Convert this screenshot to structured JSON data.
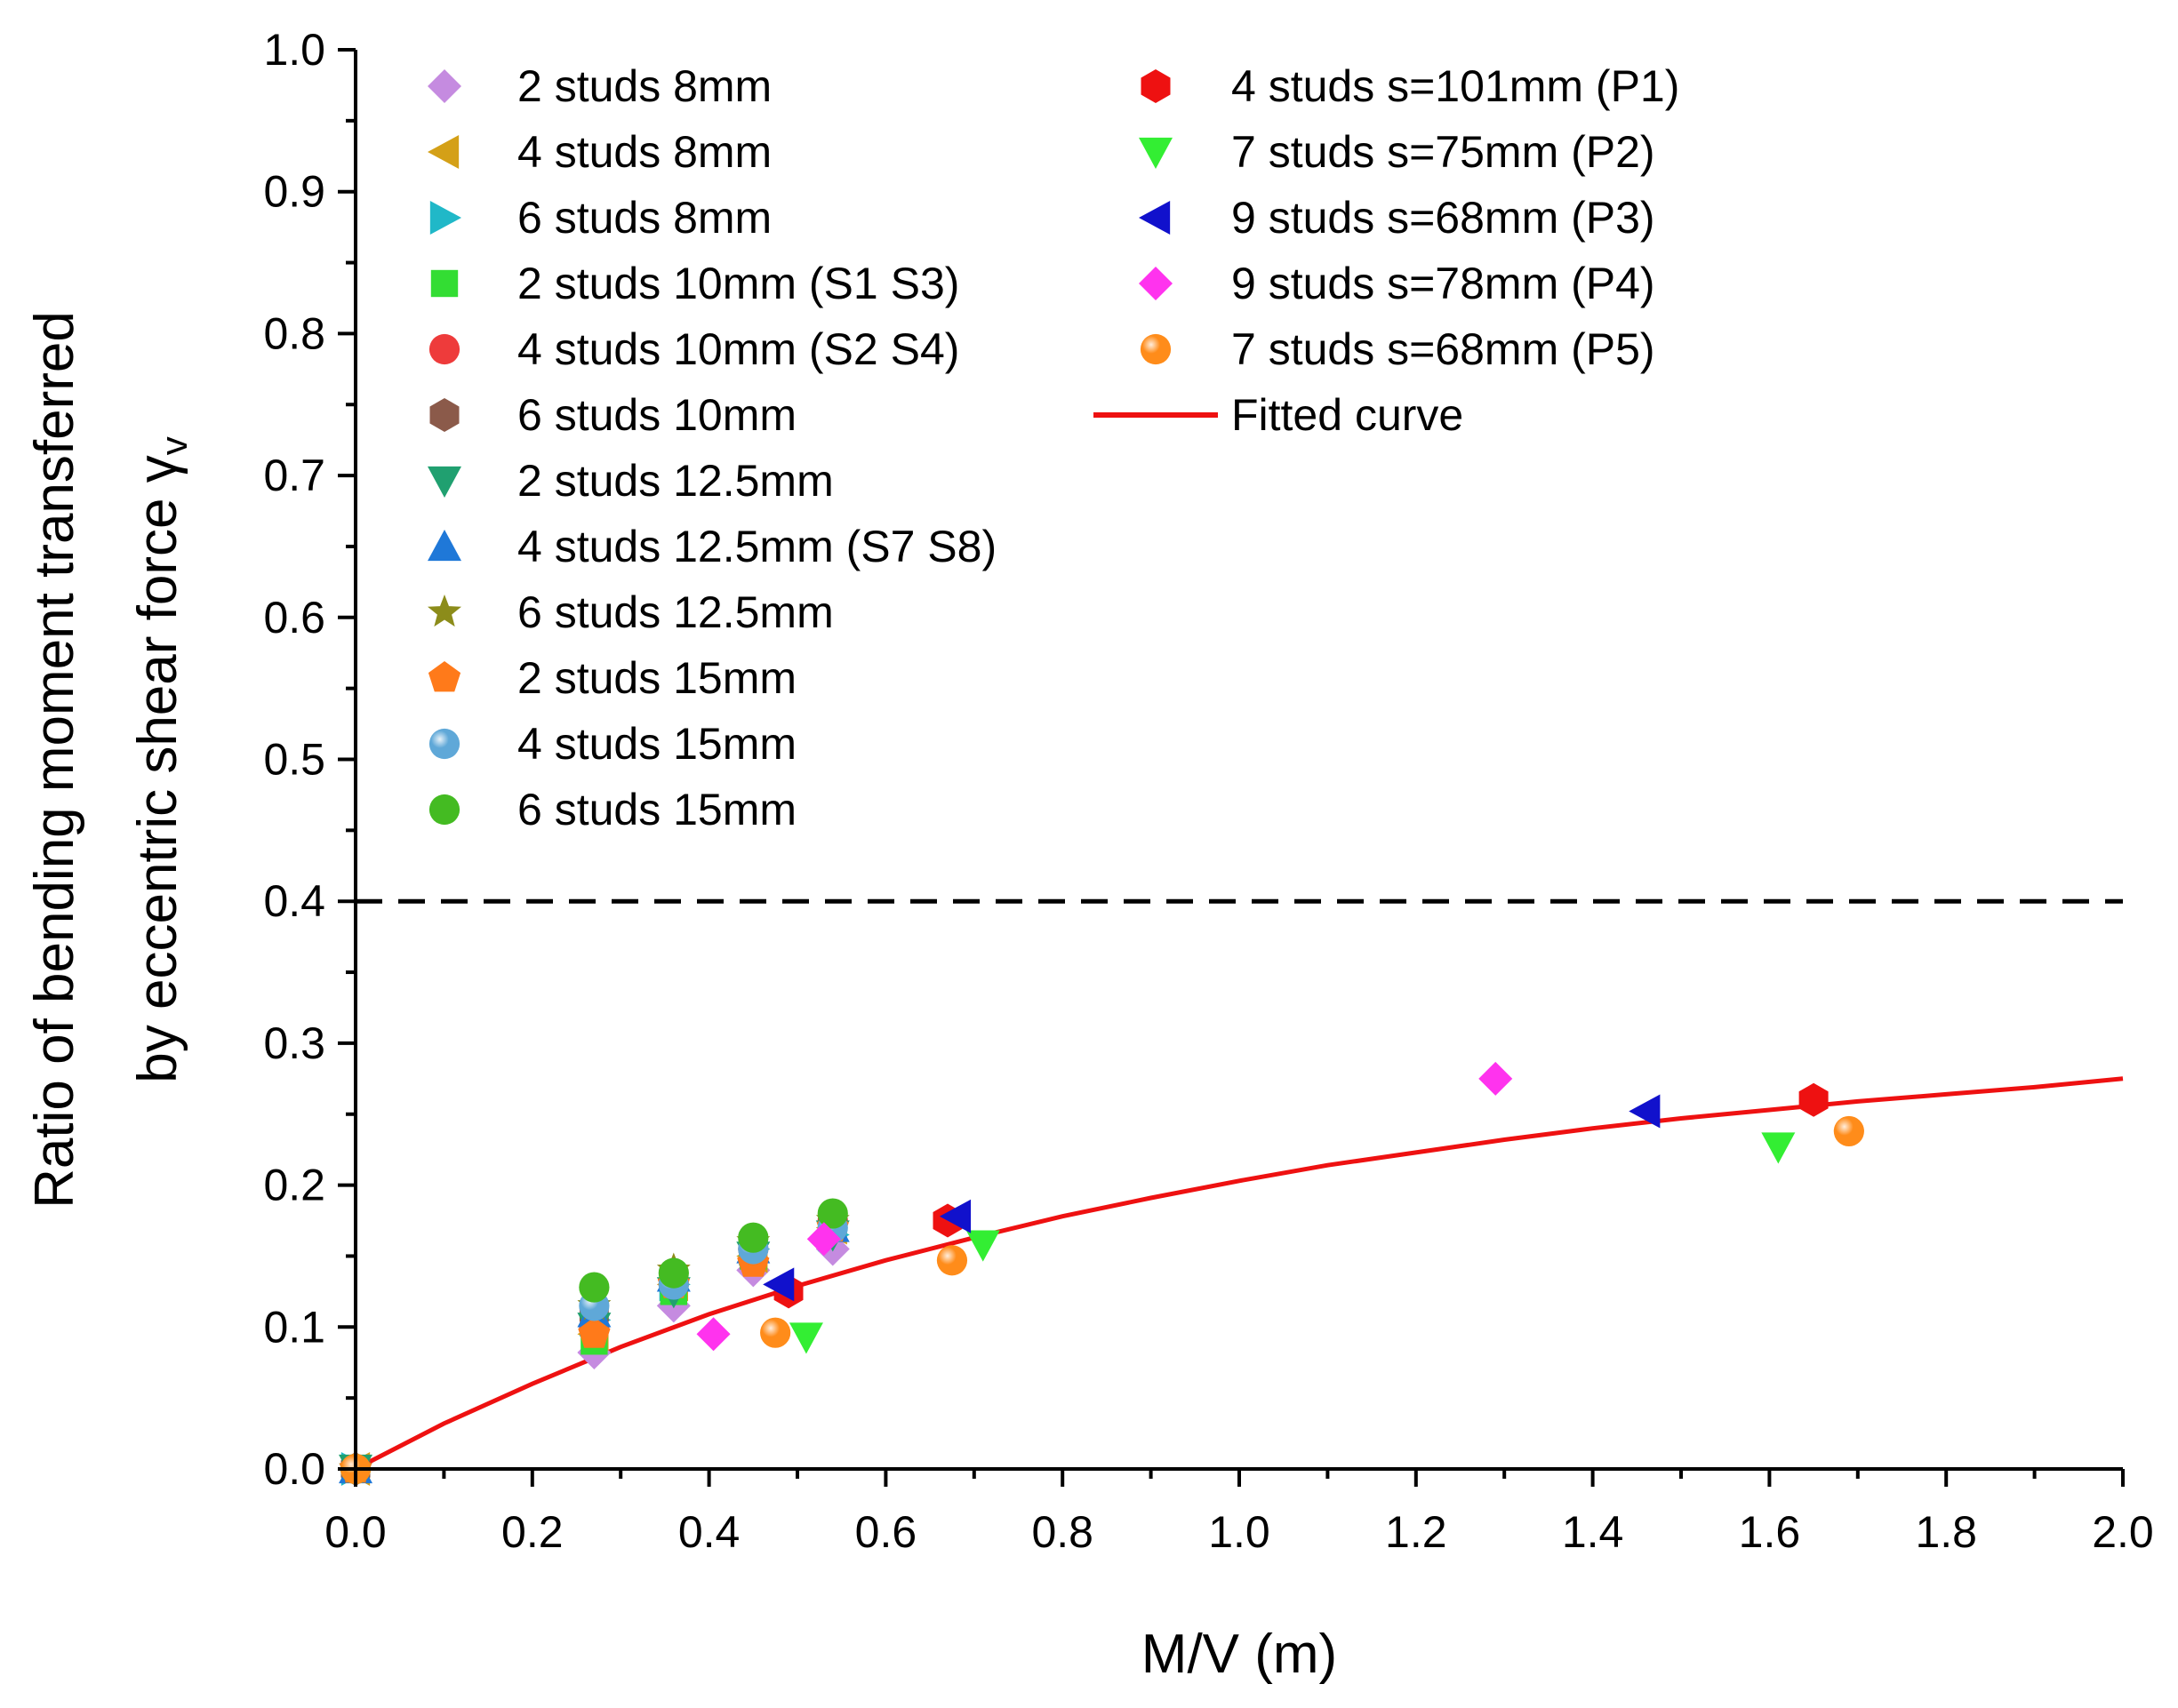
{
  "chart_data": {
    "type": "scatter",
    "xlabel": "M/V (m)",
    "ylabel": {
      "line1": "Ratio of bending moment transferred",
      "line2": "by eccentric shear force γ",
      "line2_subscript": "v"
    },
    "xlim": [
      0.0,
      2.0
    ],
    "ylim": [
      0.0,
      1.0
    ],
    "x_ticks": [
      "0.0",
      "0.2",
      "0.4",
      "0.6",
      "0.8",
      "1.0",
      "1.2",
      "1.4",
      "1.6",
      "1.8",
      "2.0"
    ],
    "y_ticks": [
      "0.0",
      "0.1",
      "0.2",
      "0.3",
      "0.4",
      "0.5",
      "0.6",
      "0.7",
      "0.8",
      "0.9",
      "1.0"
    ],
    "reference_line": {
      "y": 0.4,
      "style": "dashed",
      "color": "#000000"
    },
    "series": [
      {
        "name": "2 studs 8mm",
        "marker": "diamond",
        "color": "#c58be0",
        "points": [
          [
            0.0,
            0.0
          ],
          [
            0.27,
            0.082
          ],
          [
            0.36,
            0.115
          ],
          [
            0.45,
            0.14
          ],
          [
            0.54,
            0.155
          ]
        ]
      },
      {
        "name": "4 studs 8mm",
        "marker": "triangle-left",
        "color": "#d4a017",
        "points": [
          [
            0.0,
            0.0
          ],
          [
            0.27,
            0.095
          ],
          [
            0.36,
            0.13
          ],
          [
            0.45,
            0.15
          ],
          [
            0.54,
            0.17
          ]
        ]
      },
      {
        "name": "6 studs 8mm",
        "marker": "triangle-right",
        "color": "#20b8c8",
        "points": [
          [
            0.0,
            0.0
          ],
          [
            0.27,
            0.105
          ],
          [
            0.36,
            0.13
          ],
          [
            0.45,
            0.155
          ],
          [
            0.54,
            0.165
          ]
        ]
      },
      {
        "name": "2 studs 10mm (S1 S3)",
        "marker": "square",
        "color": "#33dd33",
        "points": [
          [
            0.0,
            0.0
          ],
          [
            0.27,
            0.09
          ],
          [
            0.36,
            0.125
          ],
          [
            0.45,
            0.15
          ],
          [
            0.54,
            0.17
          ]
        ]
      },
      {
        "name": "4 studs 10mm (S2 S4)",
        "marker": "circle",
        "color": "#ee3b3b",
        "points": [
          [
            0.0,
            0.0
          ],
          [
            0.27,
            0.1
          ],
          [
            0.36,
            0.13
          ],
          [
            0.45,
            0.155
          ],
          [
            0.54,
            0.175
          ]
        ]
      },
      {
        "name": "6 studs 10mm",
        "marker": "hexagon",
        "color": "#8b5a4a",
        "points": [
          [
            0.0,
            0.0
          ],
          [
            0.27,
            0.11
          ],
          [
            0.36,
            0.135
          ],
          [
            0.45,
            0.16
          ],
          [
            0.54,
            0.175
          ]
        ]
      },
      {
        "name": "2 studs 12.5mm",
        "marker": "triangle-down",
        "color": "#20a070",
        "points": [
          [
            0.0,
            0.0
          ],
          [
            0.27,
            0.1
          ],
          [
            0.36,
            0.125
          ],
          [
            0.45,
            0.15
          ],
          [
            0.54,
            0.165
          ]
        ]
      },
      {
        "name": "4 studs 12.5mm (S7 S8)",
        "marker": "triangle-up",
        "color": "#1f78d8",
        "points": [
          [
            0.0,
            0.0
          ],
          [
            0.27,
            0.11
          ],
          [
            0.36,
            0.135
          ],
          [
            0.45,
            0.155
          ],
          [
            0.54,
            0.17
          ]
        ]
      },
      {
        "name": "6 studs 12.5mm",
        "marker": "star",
        "color": "#8c8c1a",
        "points": [
          [
            0.0,
            0.0
          ],
          [
            0.27,
            0.115
          ],
          [
            0.36,
            0.14
          ],
          [
            0.45,
            0.16
          ],
          [
            0.54,
            0.175
          ]
        ]
      },
      {
        "name": "2 studs 15mm",
        "marker": "pentagon",
        "color": "#ff7a1a",
        "points": [
          [
            0.0,
            0.0
          ],
          [
            0.27,
            0.095
          ],
          [
            0.36,
            0.13
          ],
          [
            0.45,
            0.145
          ],
          [
            0.54,
            0.17
          ]
        ]
      },
      {
        "name": "4 studs 15mm",
        "marker": "sphere",
        "color": "#5fa8d8",
        "points": [
          [
            0.0,
            0.0
          ],
          [
            0.27,
            0.115
          ],
          [
            0.36,
            0.13
          ],
          [
            0.45,
            0.155
          ],
          [
            0.54,
            0.17
          ]
        ]
      },
      {
        "name": "6 studs 15mm",
        "marker": "circle",
        "color": "#44bb22",
        "points": [
          [
            0.0,
            0.0
          ],
          [
            0.27,
            0.128
          ],
          [
            0.36,
            0.138
          ],
          [
            0.45,
            0.163
          ],
          [
            0.54,
            0.18
          ]
        ]
      },
      {
        "name": "4 studs s=101mm (P1)",
        "marker": "hexagon",
        "color": "#ee1111",
        "points": [
          [
            0.49,
            0.125
          ],
          [
            0.67,
            0.175
          ],
          [
            1.65,
            0.26
          ]
        ]
      },
      {
        "name": "7 studs s=75mm (P2)",
        "marker": "triangle-down",
        "color": "#33ee33",
        "points": [
          [
            0.51,
            0.093
          ],
          [
            0.71,
            0.158
          ],
          [
            1.61,
            0.227
          ]
        ]
      },
      {
        "name": "9 studs s=68mm (P3)",
        "marker": "triangle-left",
        "color": "#1111cc",
        "points": [
          [
            0.48,
            0.13
          ],
          [
            0.68,
            0.178
          ],
          [
            1.46,
            0.252
          ]
        ]
      },
      {
        "name": "9 studs s=78mm (P4)",
        "marker": "diamond",
        "color": "#ff33ee",
        "points": [
          [
            0.405,
            0.095
          ],
          [
            0.53,
            0.162
          ],
          [
            1.29,
            0.275
          ]
        ]
      },
      {
        "name": "7 studs s=68mm (P5)",
        "marker": "sphere",
        "color": "#ff8c1a",
        "points": [
          [
            0.0,
            0.0
          ],
          [
            0.475,
            0.096
          ],
          [
            0.675,
            0.147
          ],
          [
            1.69,
            0.238
          ]
        ]
      }
    ],
    "fitted_curve": {
      "name": "Fitted curve",
      "color": "#ee1111",
      "x": [
        0.0,
        0.1,
        0.2,
        0.3,
        0.4,
        0.5,
        0.6,
        0.7,
        0.8,
        0.9,
        1.0,
        1.1,
        1.2,
        1.3,
        1.4,
        1.5,
        1.6,
        1.7,
        1.8,
        1.9,
        2.0
      ],
      "y": [
        0.0,
        0.032,
        0.06,
        0.086,
        0.109,
        0.129,
        0.147,
        0.163,
        0.178,
        0.191,
        0.203,
        0.214,
        0.223,
        0.232,
        0.24,
        0.247,
        0.253,
        0.259,
        0.264,
        0.269,
        0.275
      ]
    },
    "legend": {
      "columns": [
        [
          "2 studs 8mm",
          "4 studs 8mm",
          "6 studs 8mm",
          "2 studs 10mm (S1 S3)",
          "4 studs 10mm (S2 S4)",
          "6 studs 10mm",
          "2 studs 12.5mm",
          "4 studs 12.5mm (S7 S8)",
          "6 studs 12.5mm",
          "2 studs 15mm",
          "4 studs 15mm",
          "6 studs 15mm"
        ],
        [
          "4 studs s=101mm (P1)",
          "7 studs s=75mm (P2)",
          "9 studs s=68mm (P3)",
          "9 studs s=78mm (P4)",
          "7 studs s=68mm (P5)",
          "Fitted curve"
        ]
      ],
      "position": "top-left"
    }
  }
}
